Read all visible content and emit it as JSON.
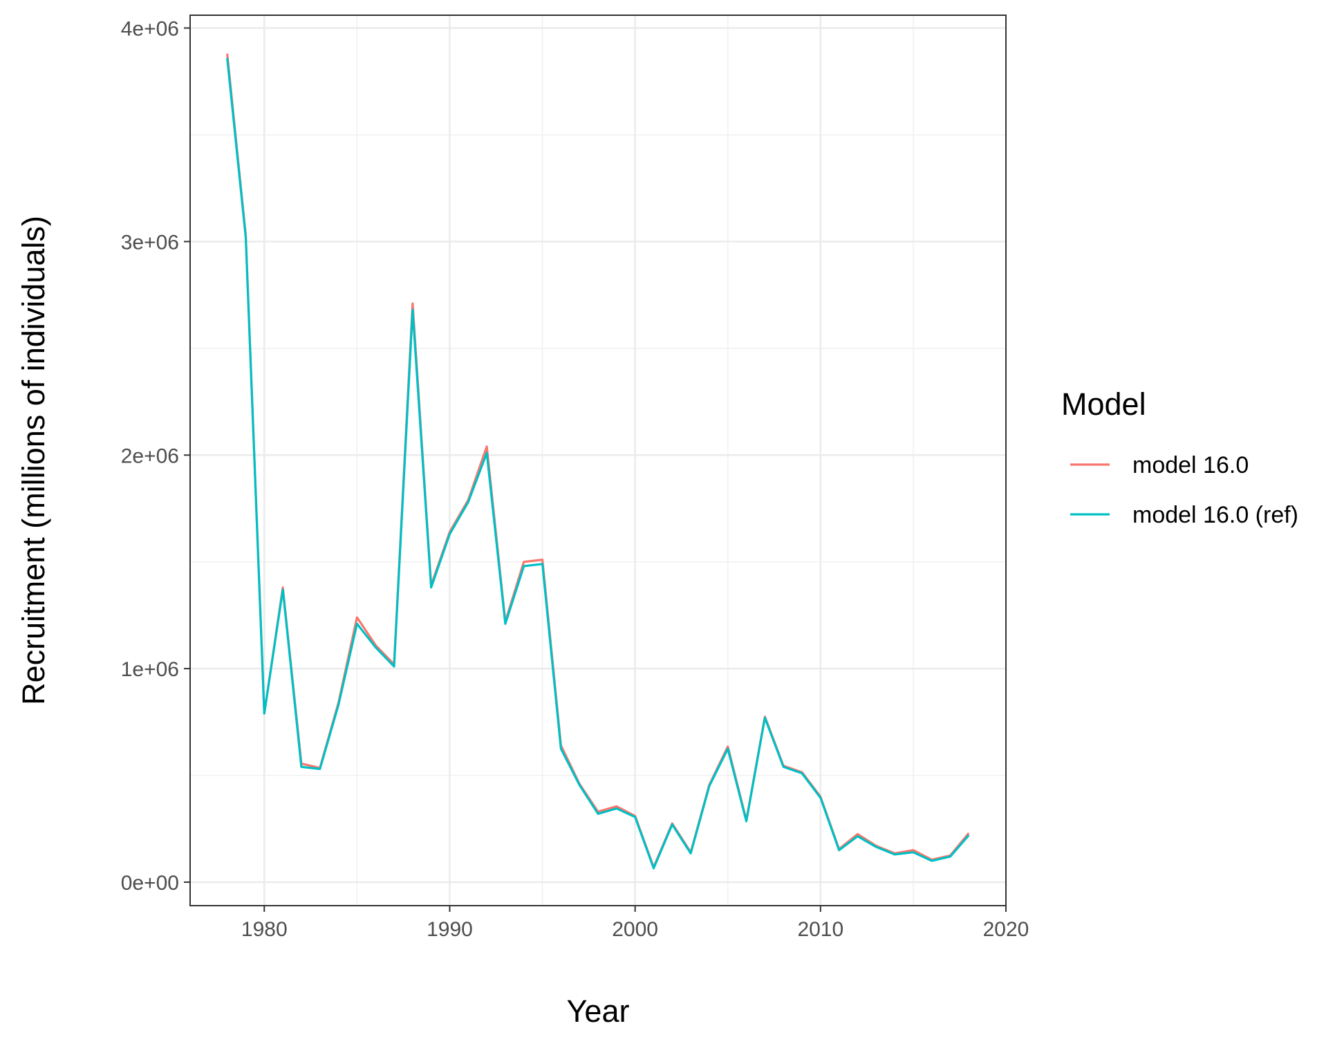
{
  "chart_data": {
    "type": "line",
    "xlabel": "Year",
    "ylabel": "Recruitment (millions of individuals)",
    "xlim": [
      1976,
      2020
    ],
    "ylim": [
      -110000,
      4060000
    ],
    "x_ticks": [
      1980,
      1990,
      2000,
      2010,
      2020
    ],
    "x_tick_labels": [
      "1980",
      "1990",
      "2000",
      "2010",
      "2020"
    ],
    "y_ticks": [
      0,
      1000000,
      2000000,
      3000000,
      4000000
    ],
    "y_tick_labels": [
      "0e+00",
      "1e+06",
      "2e+06",
      "3e+06",
      "4e+06"
    ],
    "grid": true,
    "legend": {
      "title": "Model",
      "position": "right"
    },
    "x": [
      1978,
      1979,
      1980,
      1981,
      1982,
      1983,
      1984,
      1985,
      1986,
      1987,
      1988,
      1989,
      1990,
      1991,
      1992,
      1993,
      1994,
      1995,
      1996,
      1997,
      1998,
      1999,
      2000,
      2001,
      2002,
      2003,
      2004,
      2005,
      2006,
      2007,
      2008,
      2009,
      2010,
      2011,
      2012,
      2013,
      2014,
      2015,
      2016,
      2017,
      2018
    ],
    "series": [
      {
        "name": "model 16.0",
        "color": "#F8766D",
        "values": [
          3880000,
          3030000,
          790000,
          1380000,
          555000,
          535000,
          840000,
          1240000,
          1110000,
          1020000,
          2710000,
          1390000,
          1640000,
          1790000,
          2040000,
          1220000,
          1500000,
          1510000,
          640000,
          460000,
          330000,
          355000,
          310000,
          70000,
          275000,
          140000,
          455000,
          635000,
          290000,
          775000,
          545000,
          515000,
          400000,
          155000,
          225000,
          170000,
          135000,
          150000,
          105000,
          125000,
          230000
        ]
      },
      {
        "name": "model 16.0 (ref)",
        "color": "#00BFC4",
        "values": [
          3860000,
          3020000,
          790000,
          1370000,
          540000,
          530000,
          830000,
          1210000,
          1100000,
          1010000,
          2680000,
          1380000,
          1630000,
          1780000,
          2010000,
          1210000,
          1480000,
          1490000,
          625000,
          455000,
          320000,
          345000,
          305000,
          65000,
          270000,
          135000,
          450000,
          625000,
          285000,
          770000,
          540000,
          510000,
          395000,
          150000,
          215000,
          165000,
          130000,
          140000,
          100000,
          120000,
          220000
        ]
      }
    ]
  }
}
